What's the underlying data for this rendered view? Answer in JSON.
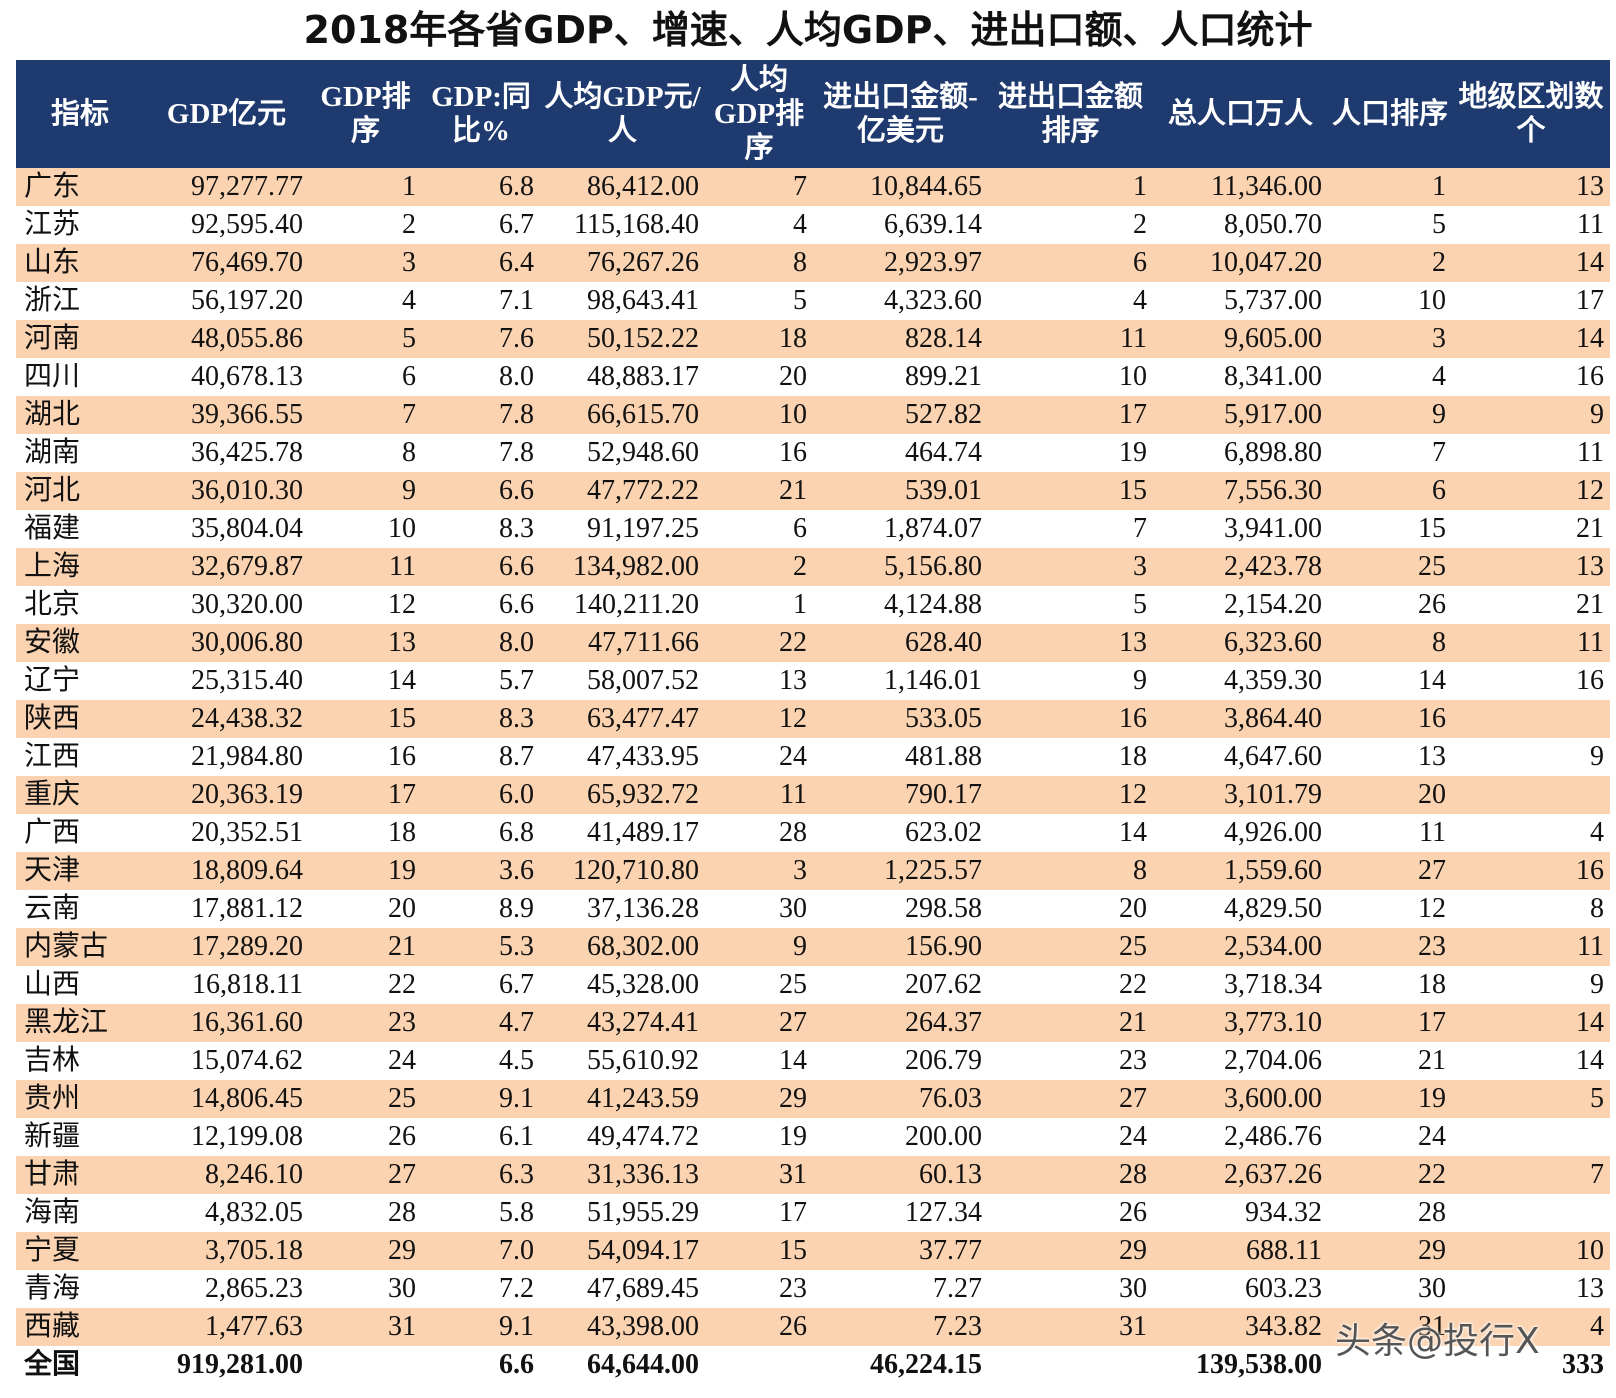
{
  "title": "2018年各省GDP、增速、人均GDP、进出口额、人口统计",
  "table": {
    "header": [
      "指标",
      "GDP亿元",
      "GDP排序",
      "GDP:同比%",
      "人均GDP元/人",
      "人均GDP排序",
      "进出口金额-亿美元",
      "进出口金额排序",
      "总人口万人",
      "人口排序",
      "地级区划数个"
    ],
    "rows": [
      [
        "广东",
        "97,277.77",
        "1",
        "6.8",
        "86,412.00",
        "7",
        "10,844.65",
        "1",
        "11,346.00",
        "1",
        "13"
      ],
      [
        "江苏",
        "92,595.40",
        "2",
        "6.7",
        "115,168.40",
        "4",
        "6,639.14",
        "2",
        "8,050.70",
        "5",
        "11"
      ],
      [
        "山东",
        "76,469.70",
        "3",
        "6.4",
        "76,267.26",
        "8",
        "2,923.97",
        "6",
        "10,047.20",
        "2",
        "14"
      ],
      [
        "浙江",
        "56,197.20",
        "4",
        "7.1",
        "98,643.41",
        "5",
        "4,323.60",
        "4",
        "5,737.00",
        "10",
        "17"
      ],
      [
        "河南",
        "48,055.86",
        "5",
        "7.6",
        "50,152.22",
        "18",
        "828.14",
        "11",
        "9,605.00",
        "3",
        "14"
      ],
      [
        "四川",
        "40,678.13",
        "6",
        "8.0",
        "48,883.17",
        "20",
        "899.21",
        "10",
        "8,341.00",
        "4",
        "16"
      ],
      [
        "湖北",
        "39,366.55",
        "7",
        "7.8",
        "66,615.70",
        "10",
        "527.82",
        "17",
        "5,917.00",
        "9",
        "9"
      ],
      [
        "湖南",
        "36,425.78",
        "8",
        "7.8",
        "52,948.60",
        "16",
        "464.74",
        "19",
        "6,898.80",
        "7",
        "11"
      ],
      [
        "河北",
        "36,010.30",
        "9",
        "6.6",
        "47,772.22",
        "21",
        "539.01",
        "15",
        "7,556.30",
        "6",
        "12"
      ],
      [
        "福建",
        "35,804.04",
        "10",
        "8.3",
        "91,197.25",
        "6",
        "1,874.07",
        "7",
        "3,941.00",
        "15",
        "21"
      ],
      [
        "上海",
        "32,679.87",
        "11",
        "6.6",
        "134,982.00",
        "2",
        "5,156.80",
        "3",
        "2,423.78",
        "25",
        "13"
      ],
      [
        "北京",
        "30,320.00",
        "12",
        "6.6",
        "140,211.20",
        "1",
        "4,124.88",
        "5",
        "2,154.20",
        "26",
        "21"
      ],
      [
        "安徽",
        "30,006.80",
        "13",
        "8.0",
        "47,711.66",
        "22",
        "628.40",
        "13",
        "6,323.60",
        "8",
        "11"
      ],
      [
        "辽宁",
        "25,315.40",
        "14",
        "5.7",
        "58,007.52",
        "13",
        "1,146.01",
        "9",
        "4,359.30",
        "14",
        "16"
      ],
      [
        "陕西",
        "24,438.32",
        "15",
        "8.3",
        "63,477.47",
        "12",
        "533.05",
        "16",
        "3,864.40",
        "16",
        null
      ],
      [
        "江西",
        "21,984.80",
        "16",
        "8.7",
        "47,433.95",
        "24",
        "481.88",
        "18",
        "4,647.60",
        "13",
        "9"
      ],
      [
        "重庆",
        "20,363.19",
        "17",
        "6.0",
        "65,932.72",
        "11",
        "790.17",
        "12",
        "3,101.79",
        "20",
        null
      ],
      [
        "广西",
        "20,352.51",
        "18",
        "6.8",
        "41,489.17",
        "28",
        "623.02",
        "14",
        "4,926.00",
        "11",
        "4"
      ],
      [
        "天津",
        "18,809.64",
        "19",
        "3.6",
        "120,710.80",
        "3",
        "1,225.57",
        "8",
        "1,559.60",
        "27",
        "16"
      ],
      [
        "云南",
        "17,881.12",
        "20",
        "8.9",
        "37,136.28",
        "30",
        "298.58",
        "20",
        "4,829.50",
        "12",
        "8"
      ],
      [
        "内蒙古",
        "17,289.20",
        "21",
        "5.3",
        "68,302.00",
        "9",
        "156.90",
        "25",
        "2,534.00",
        "23",
        "11"
      ],
      [
        "山西",
        "16,818.11",
        "22",
        "6.7",
        "45,328.00",
        "25",
        "207.62",
        "22",
        "3,718.34",
        "18",
        "9"
      ],
      [
        "黑龙江",
        "16,361.60",
        "23",
        "4.7",
        "43,274.41",
        "27",
        "264.37",
        "21",
        "3,773.10",
        "17",
        "14"
      ],
      [
        "吉林",
        "15,074.62",
        "24",
        "4.5",
        "55,610.92",
        "14",
        "206.79",
        "23",
        "2,704.06",
        "21",
        "14"
      ],
      [
        "贵州",
        "14,806.45",
        "25",
        "9.1",
        "41,243.59",
        "29",
        "76.03",
        "27",
        "3,600.00",
        "19",
        "5"
      ],
      [
        "新疆",
        "12,199.08",
        "26",
        "6.1",
        "49,474.72",
        "19",
        "200.00",
        "24",
        "2,486.76",
        "24",
        null
      ],
      [
        "甘肃",
        "8,246.10",
        "27",
        "6.3",
        "31,336.13",
        "31",
        "60.13",
        "28",
        "2,637.26",
        "22",
        "7"
      ],
      [
        "海南",
        "4,832.05",
        "28",
        "5.8",
        "51,955.29",
        "17",
        "127.34",
        "26",
        "934.32",
        "28",
        null
      ],
      [
        "宁夏",
        "3,705.18",
        "29",
        "7.0",
        "54,094.17",
        "15",
        "37.77",
        "29",
        "688.11",
        "29",
        "10"
      ],
      [
        "青海",
        "2,865.23",
        "30",
        "7.2",
        "47,689.45",
        "23",
        "7.27",
        "30",
        "603.23",
        "30",
        "13"
      ],
      [
        "西藏",
        "1,477.63",
        "31",
        "9.1",
        "43,398.00",
        "26",
        "7.23",
        "31",
        "343.82",
        "31",
        "4"
      ]
    ],
    "total": [
      "全国",
      "919,281.00",
      null,
      "6.6",
      "64,644.00",
      null,
      "46,224.15",
      null,
      "139,538.00",
      null,
      "333"
    ]
  },
  "watermark": "头条@投行X"
}
